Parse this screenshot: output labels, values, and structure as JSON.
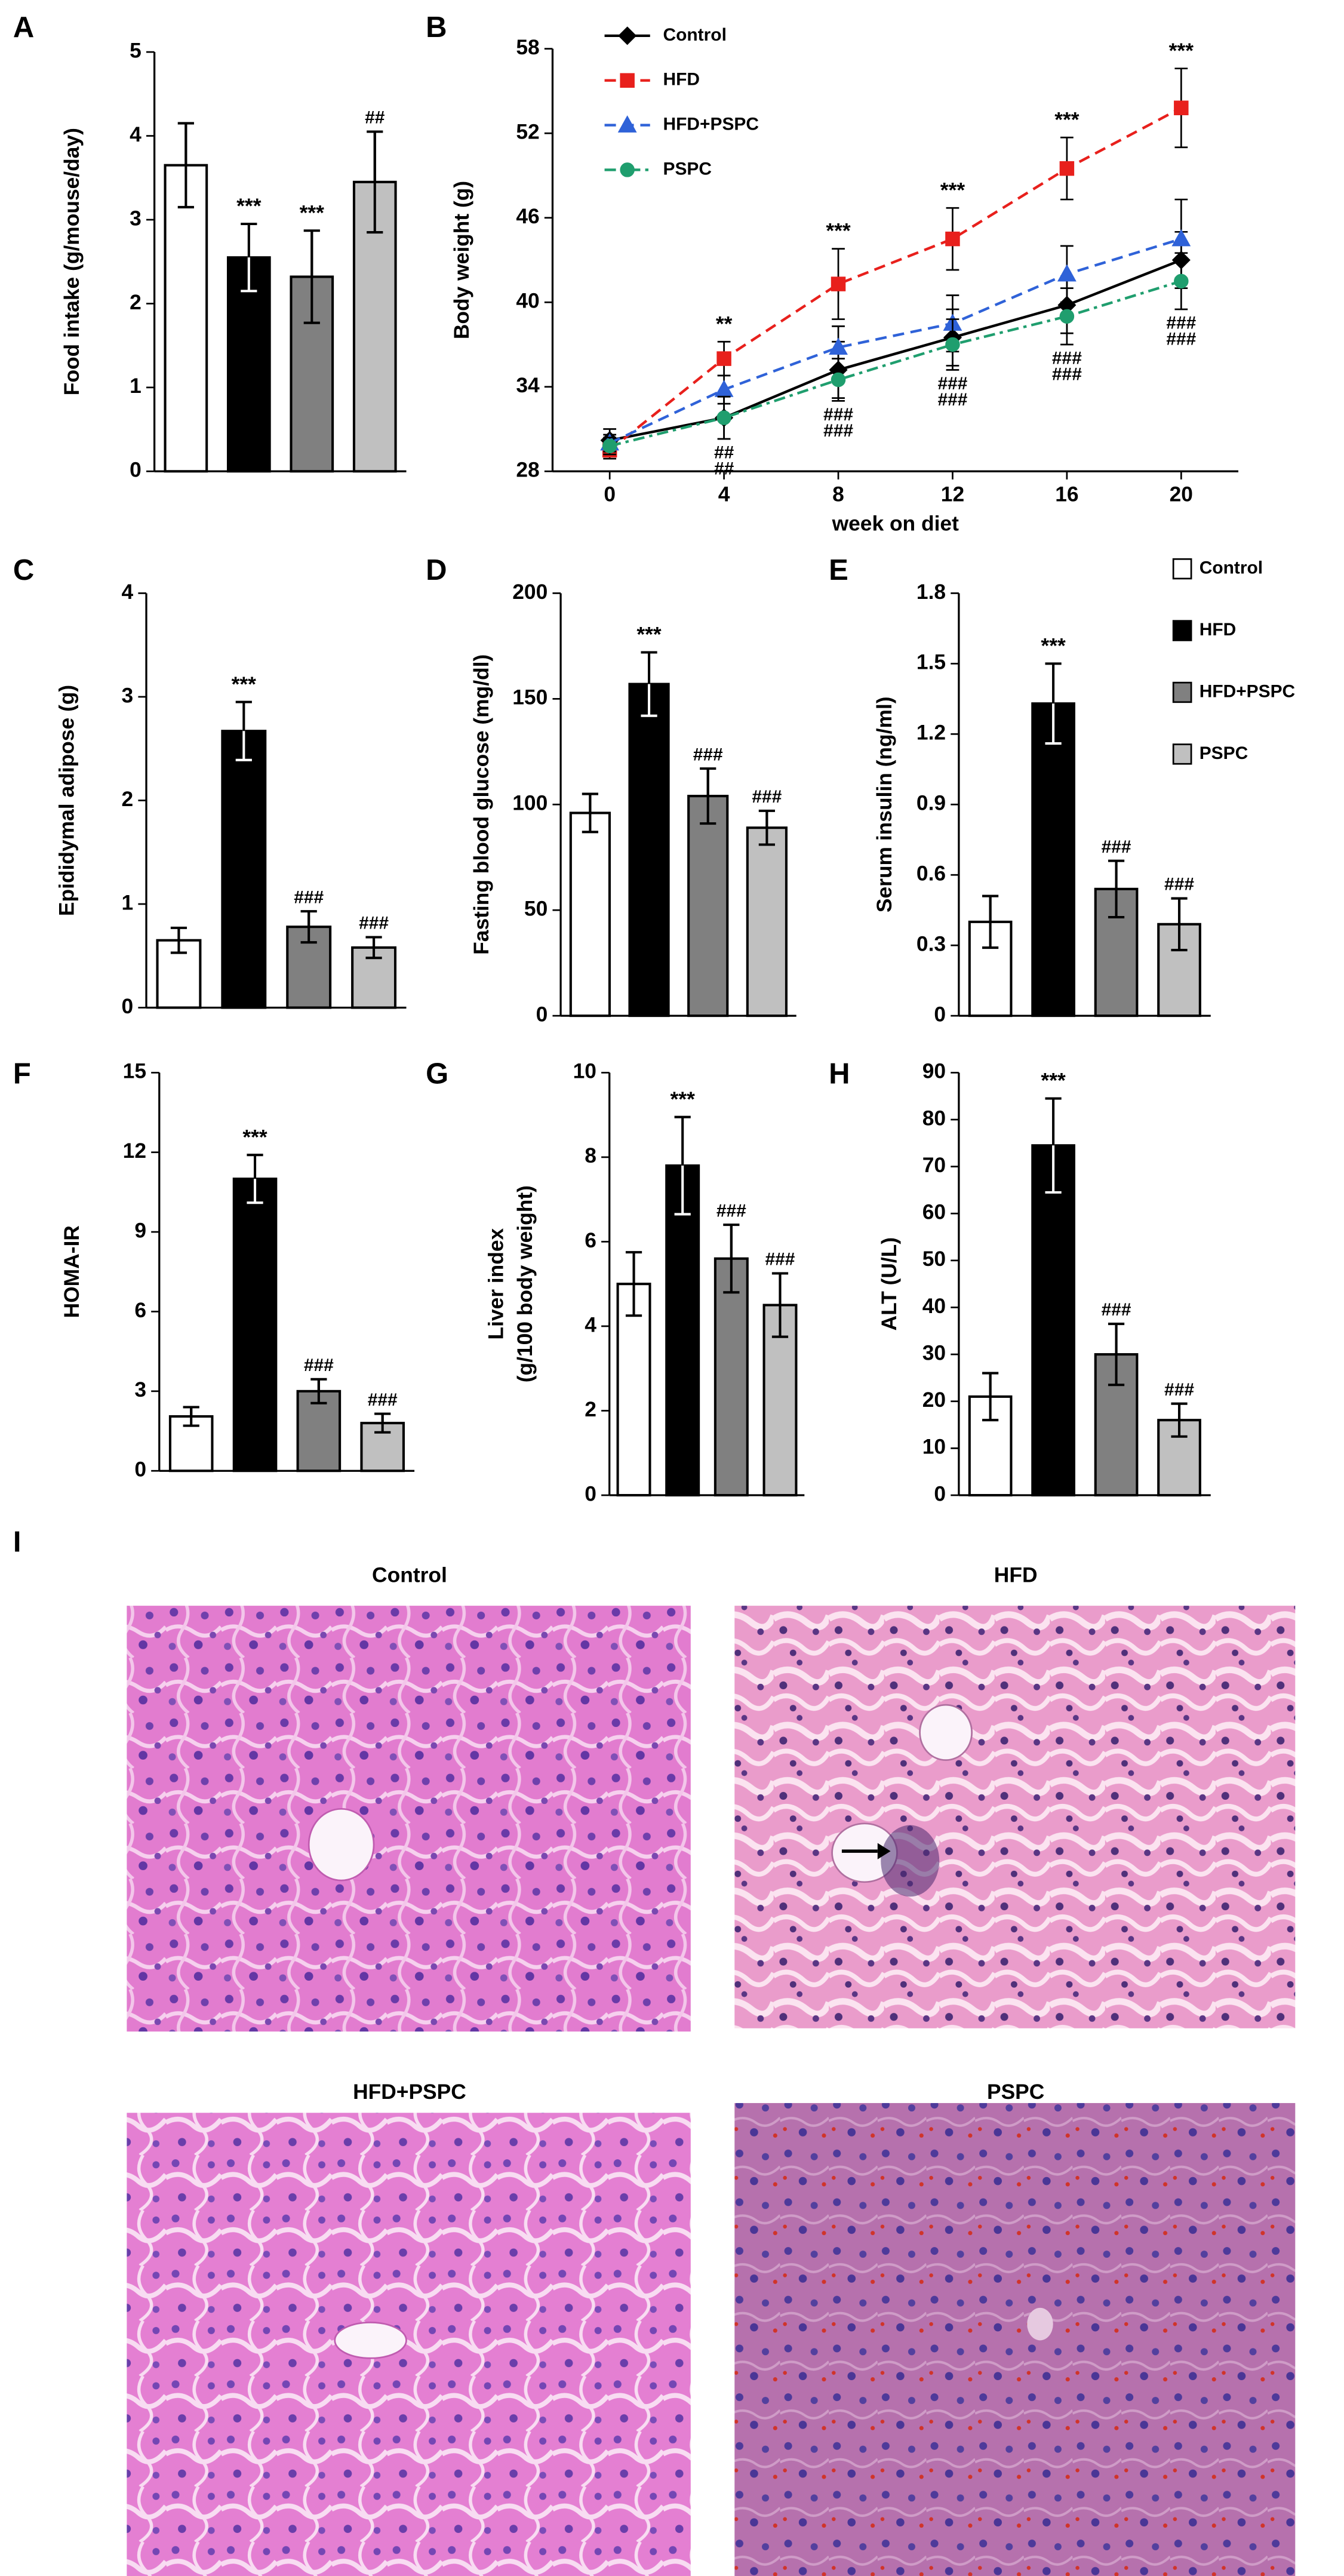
{
  "group_legend": {
    "names": [
      "Control",
      "HFD",
      "HFD+PSPC",
      "PSPC"
    ],
    "colors": [
      "#ffffff",
      "#000000",
      "#808080",
      "#c0c0c0"
    ]
  },
  "chart_data": [
    {
      "label": "A",
      "type": "bar",
      "ylabel": "Food intake (g/mouse/day)",
      "values": [
        3.65,
        2.55,
        2.32,
        3.45
      ],
      "errors": [
        0.5,
        0.4,
        0.55,
        0.6
      ],
      "annotations": [
        null,
        "***",
        "***",
        "##"
      ],
      "ylim": [
        0,
        5
      ],
      "yticks": [
        0,
        1,
        2,
        3,
        4,
        5
      ]
    },
    {
      "label": "B",
      "type": "line",
      "ylabel": "Body weight (g)",
      "xlabel": "week on diet",
      "x": [
        0,
        4,
        8,
        12,
        16,
        20
      ],
      "xlim": [
        -2,
        22
      ],
      "xticks": [
        0,
        4,
        8,
        12,
        16,
        20
      ],
      "ylim": [
        28,
        58
      ],
      "yticks": [
        28,
        34,
        40,
        46,
        52,
        58
      ],
      "series": [
        {
          "name": "Control",
          "color": "#000000",
          "marker": "diamond",
          "dash": "none",
          "values": [
            30.2,
            31.8,
            35.2,
            37.5,
            39.8,
            43.0
          ],
          "errors": [
            0.8,
            1.5,
            2.0,
            2.0,
            2.0,
            2.0
          ]
        },
        {
          "name": "HFD",
          "color": "#e8201c",
          "marker": "square",
          "dash": "7 4",
          "values": [
            29.5,
            36.0,
            41.3,
            44.5,
            49.5,
            53.8
          ],
          "errors": [
            0.6,
            1.2,
            2.5,
            2.2,
            2.2,
            2.8
          ]
        },
        {
          "name": "HFD+PSPC",
          "color": "#2f62d8",
          "marker": "triangle",
          "dash": "7 4",
          "values": [
            30.0,
            33.8,
            36.8,
            38.5,
            42.0,
            44.5
          ],
          "errors": [
            0.6,
            1.0,
            1.5,
            2.0,
            2.0,
            2.8
          ]
        },
        {
          "name": "PSPC",
          "color": "#1f9e6e",
          "marker": "circle",
          "dash": "7 3 2 3",
          "values": [
            29.8,
            31.8,
            34.5,
            37.0,
            39.0,
            41.5
          ],
          "errors": [
            0.6,
            1.5,
            1.5,
            1.8,
            2.0,
            2.0
          ]
        }
      ],
      "annotations_above": [
        null,
        "**",
        "***",
        "***",
        "***",
        "***"
      ],
      "annotations_below": [
        [],
        [
          "##",
          "##"
        ],
        [
          "###",
          "###"
        ],
        [
          "###",
          "###"
        ],
        [
          "###",
          "###"
        ],
        [
          "###",
          "###"
        ]
      ]
    },
    {
      "label": "C",
      "type": "bar",
      "ylabel": "Epididymal adipose  (g)",
      "values": [
        0.65,
        2.67,
        0.78,
        0.58
      ],
      "errors": [
        0.12,
        0.28,
        0.15,
        0.1
      ],
      "annotations": [
        null,
        "***",
        "###",
        "###"
      ],
      "ylim": [
        0,
        4
      ],
      "yticks": [
        0,
        1,
        2,
        3,
        4
      ]
    },
    {
      "label": "D",
      "type": "bar",
      "ylabel": "Fasting blood glucose (mg/dl)",
      "values": [
        96,
        157,
        104,
        89
      ],
      "errors": [
        9,
        15,
        13,
        8
      ],
      "annotations": [
        null,
        "***",
        "###",
        "###"
      ],
      "ylim": [
        0,
        200
      ],
      "yticks": [
        0,
        50,
        100,
        150,
        200
      ]
    },
    {
      "label": "E",
      "type": "bar",
      "ylabel": "Serum insulin (ng/ml)",
      "values": [
        0.4,
        1.33,
        0.54,
        0.39
      ],
      "errors": [
        0.11,
        0.17,
        0.12,
        0.11
      ],
      "annotations": [
        null,
        "***",
        "###",
        "###"
      ],
      "ylim": [
        0,
        1.8
      ],
      "yticks": [
        0,
        0.3,
        0.6,
        0.9,
        1.2,
        1.5,
        1.8
      ]
    },
    {
      "label": "F",
      "type": "bar",
      "ylabel": "HOMA-IR",
      "values": [
        2.05,
        11.0,
        3.0,
        1.8
      ],
      "errors": [
        0.35,
        0.9,
        0.45,
        0.35
      ],
      "annotations": [
        null,
        "***",
        "###",
        "###"
      ],
      "ylim": [
        0,
        15
      ],
      "yticks": [
        0,
        3,
        6,
        9,
        12,
        15
      ]
    },
    {
      "label": "G",
      "type": "bar",
      "ylabel": [
        "Liver index",
        "(g/100 body weight)"
      ],
      "values": [
        5.0,
        7.8,
        5.6,
        4.5
      ],
      "errors": [
        0.75,
        1.15,
        0.8,
        0.75
      ],
      "annotations": [
        null,
        "***",
        "###",
        "###"
      ],
      "ylim": [
        0,
        10
      ],
      "yticks": [
        0,
        2,
        4,
        6,
        8,
        10
      ]
    },
    {
      "label": "H",
      "type": "bar",
      "ylabel": "ALT (U/L)",
      "values": [
        21,
        74.5,
        30,
        16
      ],
      "errors": [
        5,
        10,
        6.5,
        3.5
      ],
      "annotations": [
        null,
        "***",
        "###",
        "###"
      ],
      "ylim": [
        0,
        90
      ],
      "yticks": [
        0,
        10,
        20,
        30,
        40,
        50,
        60,
        70,
        80,
        90
      ]
    }
  ],
  "histology": {
    "label": "I",
    "titles": [
      "Control",
      "HFD",
      "HFD+PSPC",
      "PSPC"
    ]
  }
}
